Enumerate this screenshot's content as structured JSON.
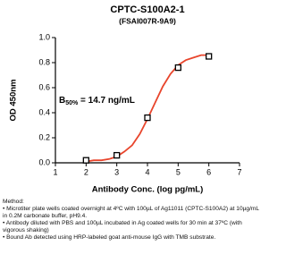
{
  "chart_data": {
    "type": "scatter",
    "title": "CPTC-S100A2-1",
    "subtitle": "(FSAI007R-9A9)",
    "x_label": "Antibody Conc. (log pg/mL)",
    "y_label": "OD 450nm",
    "annotation": {
      "symbol": "B",
      "subscript": "50%",
      "text": " = 14.7 ng/mL"
    },
    "points": {
      "x": [
        2,
        3,
        4,
        5,
        6
      ],
      "values": [
        0.02,
        0.06,
        0.36,
        0.76,
        0.85
      ],
      "color": "#000000"
    },
    "fit": {
      "x": [
        2,
        2.25,
        2.5,
        2.75,
        3,
        3.25,
        3.5,
        3.75,
        4,
        4.25,
        4.5,
        4.75,
        5,
        5.25,
        5.5,
        5.75,
        6
      ],
      "values": [
        0.01,
        0.02,
        0.02,
        0.03,
        0.05,
        0.09,
        0.14,
        0.23,
        0.35,
        0.48,
        0.61,
        0.71,
        0.78,
        0.82,
        0.84,
        0.86,
        0.86
      ],
      "color": "#e8452c"
    },
    "xlim": [
      1,
      7
    ],
    "xticks": [
      1,
      2,
      3,
      4,
      5,
      6,
      7
    ],
    "ylim": [
      0,
      1
    ],
    "yticks": [
      {
        "value": 0,
        "label": "0.0"
      },
      0.2,
      0.4,
      0.6,
      0.8,
      {
        "value": 1,
        "label": "1.0"
      }
    ],
    "grid": false
  },
  "notes": {
    "title": "Method:",
    "items": [
      "• Microtiter plate wells coated overnight at 4ºC with 100µL of Ag11011 (CPTC-S100A2) at 10µg/mL in 0.2M carbonate buffer, pH9.4.",
      "• Antibody diluted with PBS and 100µL incubated in Ag coated wells for 30 min at 37ºC (with vigorous shaking)",
      "• Bound Ab detected using HRP-labeled goat anti-mouse IgG with TMB substrate."
    ]
  }
}
